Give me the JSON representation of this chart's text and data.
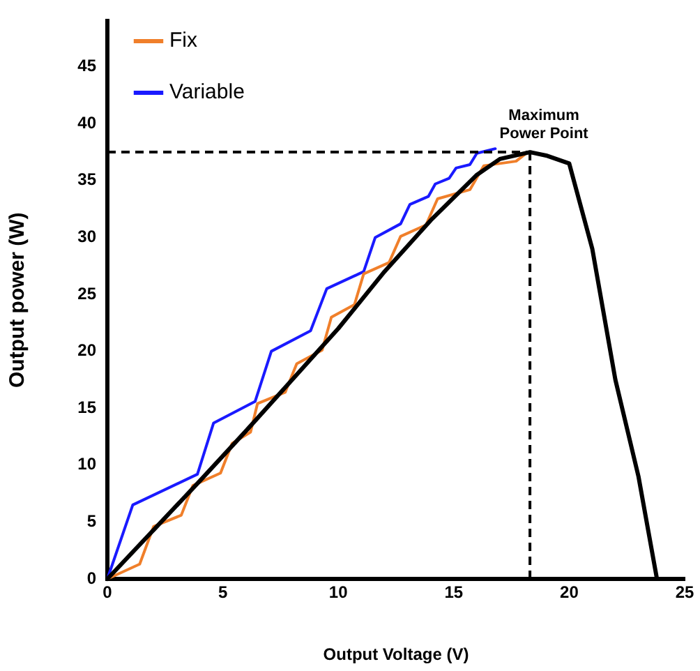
{
  "chart_data": {
    "type": "line",
    "xlabel": "Output Voltage (V)",
    "ylabel": "Output power (W)",
    "xlim": [
      0,
      25
    ],
    "ylim": [
      0,
      49
    ],
    "xticks": [
      0,
      5,
      10,
      15,
      20,
      25
    ],
    "yticks": [
      0,
      5,
      10,
      15,
      20,
      25,
      30,
      35,
      40,
      45
    ],
    "grid": false,
    "legend": "top left",
    "marker": "none",
    "line_style": "solid",
    "series": [
      {
        "color": "#000000",
        "x": [
          0,
          2,
          4,
          6,
          8,
          10,
          12,
          14,
          16,
          17,
          18.3,
          19,
          20,
          21,
          22,
          23,
          23.8
        ],
        "values": [
          0,
          4.3,
          8.6,
          13,
          17.5,
          22,
          27,
          31.5,
          35.5,
          36.9,
          37.5,
          37.2,
          36.5,
          29,
          17.5,
          9,
          0
        ]
      },
      {
        "name": "Fix",
        "color": "#f07f2a",
        "x": [
          0,
          1.4,
          2.0,
          3.2,
          3.7,
          4.9,
          5.4,
          6.2,
          6.5,
          7.7,
          8.2,
          9.3,
          9.7,
          10.7,
          11.1,
          12.2,
          12.7,
          13.8,
          14.3,
          15.7,
          16.3,
          17.7,
          18.2
        ],
        "values": [
          0,
          1.3,
          4.6,
          5.6,
          8.2,
          9.3,
          11.9,
          12.9,
          15.4,
          16.4,
          18.9,
          20.1,
          23.0,
          24.1,
          26.8,
          27.8,
          30.1,
          31.1,
          33.4,
          34.2,
          36.3,
          36.7,
          37.5
        ]
      },
      {
        "name": "Variable",
        "color": "#1a1aff",
        "x": [
          0,
          1.1,
          3.9,
          4.6,
          6.4,
          7.1,
          8.8,
          9.5,
          11.1,
          11.6,
          12.7,
          13.1,
          13.9,
          14.2,
          14.8,
          15.1,
          15.7,
          16.0,
          16.8
        ],
        "values": [
          0,
          6.5,
          9.2,
          13.7,
          15.6,
          20.0,
          21.8,
          25.5,
          27.0,
          30.0,
          31.2,
          32.9,
          33.6,
          34.7,
          35.2,
          36.1,
          36.4,
          37.4,
          37.8
        ]
      }
    ],
    "ref_lines": [
      {
        "axis": "y",
        "value": 37.5,
        "line_style": "dashed",
        "color": "#000000"
      },
      {
        "axis": "x",
        "value": 18.3,
        "line_style": "dashed",
        "color": "#000000"
      }
    ],
    "annotations": [
      {
        "text": "Maximum Power Point",
        "x": 18.3,
        "y": 37.5
      }
    ]
  }
}
